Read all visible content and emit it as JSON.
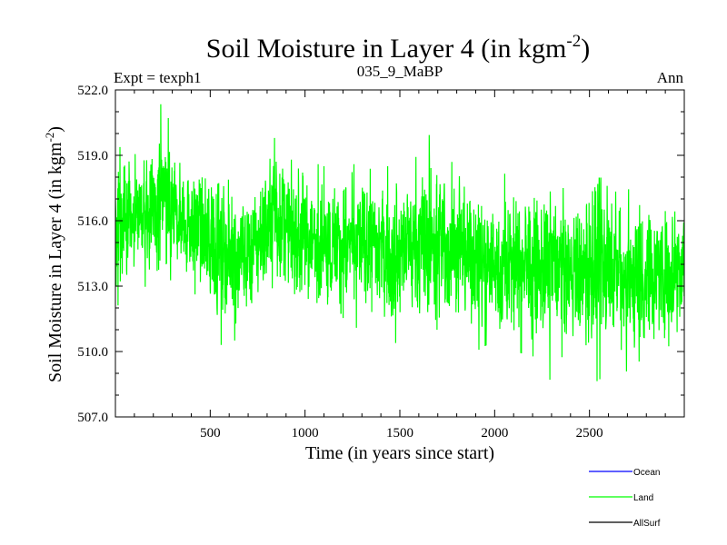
{
  "chart_data": {
    "type": "line",
    "title": "Soil Moisture in Layer 4 (in kgm",
    "title_superscript": "-2",
    "title_close": ")",
    "subtitle_left": "Expt = texph1",
    "subtitle_center": "035_9_MaBP",
    "subtitle_right": "Ann",
    "xlabel": "Time (in years since start)",
    "ylabel": "Soil Moisture in Layer 4 (in kgm",
    "ylabel_superscript": "-2",
    "ylabel_close": ")",
    "xlim": [
      0,
      3000
    ],
    "ylim": [
      507.0,
      522.0
    ],
    "x_ticks": [
      500,
      1000,
      1500,
      2000,
      2500
    ],
    "x_tick_labels": [
      "500",
      "1000",
      "1500",
      "2000",
      "2500"
    ],
    "y_ticks": [
      507,
      510,
      513,
      516,
      519,
      522
    ],
    "y_tick_labels": [
      "507.0",
      "510.0",
      "513.0",
      "516.0",
      "519.0",
      "522.0"
    ],
    "grid": false,
    "legend_position": "bottom-right",
    "series": [
      {
        "name": "Ocean",
        "color": "#0000ff",
        "x": [],
        "y": []
      },
      {
        "name": "Land",
        "color": "#00ff00",
        "x": [
          0,
          100,
          200,
          260,
          300,
          400,
          500,
          600,
          700,
          800,
          830,
          900,
          1000,
          1100,
          1200,
          1300,
          1400,
          1500,
          1600,
          1700,
          1800,
          1900,
          2000,
          2100,
          2200,
          2300,
          2400,
          2500,
          2600,
          2700,
          2760,
          2800,
          2900,
          3000
        ],
        "y": [
          516.2,
          516.0,
          516.5,
          516.8,
          516.3,
          516.0,
          515.0,
          514.6,
          514.5,
          515.8,
          516.6,
          515.5,
          515.0,
          515.0,
          514.9,
          515.0,
          514.8,
          514.7,
          514.8,
          515.0,
          514.6,
          514.4,
          514.0,
          514.0,
          513.8,
          513.9,
          513.7,
          513.6,
          514.0,
          513.5,
          513.2,
          513.6,
          513.8,
          513.9
        ],
        "min": [
          512.0,
          512.8,
          513.0,
          513.5,
          513.2,
          513.2,
          510.3,
          510.3,
          511.0,
          512.0,
          513.0,
          511.3,
          511.0,
          511.0,
          511.3,
          511.0,
          510.0,
          510.5,
          511.0,
          511.0,
          510.8,
          510.0,
          510.5,
          510.0,
          509.8,
          508.6,
          509.5,
          508.4,
          509.0,
          509.0,
          507.2,
          508.5,
          508.8,
          509.6
        ],
        "max": [
          520.3,
          519.0,
          520.5,
          521.8,
          519.5,
          519.2,
          517.5,
          518.0,
          518.0,
          520.2,
          520.9,
          518.8,
          518.8,
          518.5,
          519.0,
          518.3,
          518.5,
          518.5,
          519.0,
          520.7,
          518.0,
          518.3,
          518.0,
          518.3,
          517.0,
          517.5,
          517.5,
          517.8,
          518.1,
          518.0,
          517.5,
          517.2,
          517.0,
          517.0
        ]
      },
      {
        "name": "AllSurf",
        "color": "#000000",
        "x": [],
        "y": []
      }
    ]
  }
}
